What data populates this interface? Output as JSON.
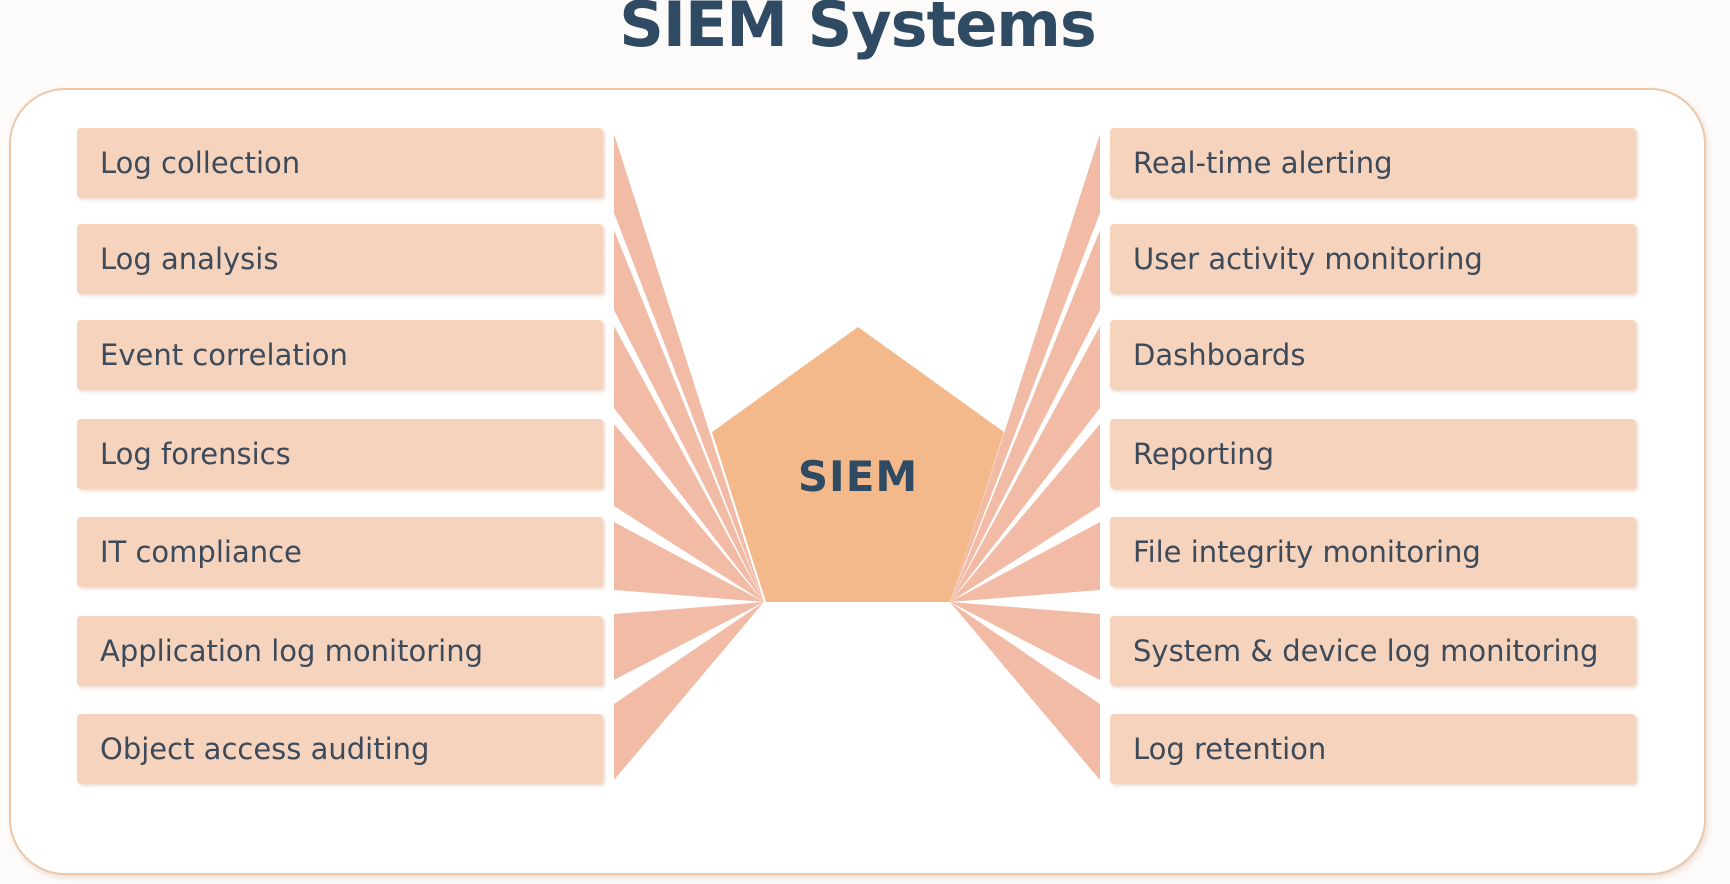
{
  "title": "SIEM Systems",
  "center": {
    "label": "SIEM",
    "color": "#f3b98a"
  },
  "colors": {
    "box": "#f6d3bd",
    "ray": "#f2bba6",
    "text": "#3c4a5a",
    "title": "#2f4a63"
  },
  "left_items": [
    "Log collection",
    "Log analysis",
    "Event correlation",
    "Log forensics",
    "IT compliance",
    "Application log monitoring",
    "Object access auditing"
  ],
  "right_items": [
    "Real-time alerting",
    "User activity monitoring",
    "Dashboards",
    "Reporting",
    "File integrity monitoring",
    "System & device log monitoring",
    "Log retention"
  ]
}
